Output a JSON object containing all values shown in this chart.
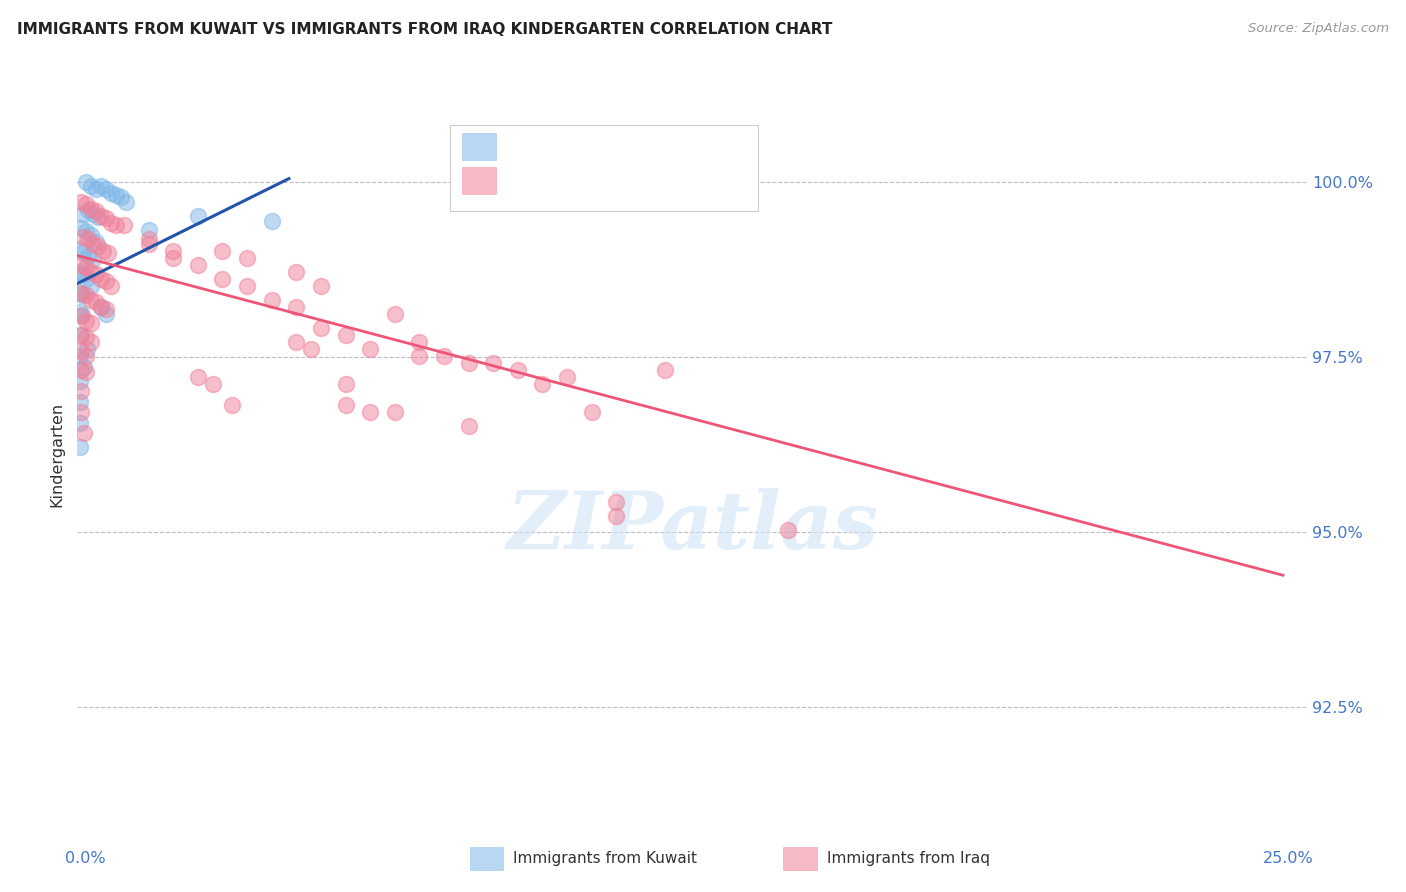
{
  "title": "IMMIGRANTS FROM KUWAIT VS IMMIGRANTS FROM IRAQ KINDERGARTEN CORRELATION CHART",
  "source": "Source: ZipAtlas.com",
  "ylabel": "Kindergarten",
  "ylabel_ticks": [
    "92.5%",
    "95.0%",
    "97.5%",
    "100.0%"
  ],
  "ytick_vals": [
    92.5,
    95.0,
    97.5,
    100.0
  ],
  "xlim": [
    0.0,
    25.0
  ],
  "ylim": [
    91.0,
    101.2
  ],
  "color_kuwait": "#7EB6E8",
  "color_iraq": "#F08098",
  "line_kuwait": "#2255AA",
  "line_iraq": "#EE5577",
  "kuwait_points": [
    [
      0.18,
      100.0
    ],
    [
      0.28,
      99.95
    ],
    [
      0.38,
      99.9
    ],
    [
      0.48,
      99.95
    ],
    [
      0.58,
      99.9
    ],
    [
      0.68,
      99.85
    ],
    [
      0.78,
      99.82
    ],
    [
      0.88,
      99.78
    ],
    [
      0.98,
      99.72
    ],
    [
      0.12,
      99.55
    ],
    [
      0.22,
      99.6
    ],
    [
      0.32,
      99.55
    ],
    [
      0.42,
      99.5
    ],
    [
      0.08,
      99.35
    ],
    [
      0.18,
      99.3
    ],
    [
      0.28,
      99.25
    ],
    [
      0.38,
      99.15
    ],
    [
      0.05,
      99.05
    ],
    [
      0.12,
      99.0
    ],
    [
      0.22,
      98.95
    ],
    [
      0.32,
      98.9
    ],
    [
      0.05,
      98.72
    ],
    [
      0.09,
      98.68
    ],
    [
      0.18,
      98.62
    ],
    [
      0.05,
      98.42
    ],
    [
      0.09,
      98.38
    ],
    [
      0.05,
      98.15
    ],
    [
      0.09,
      98.1
    ],
    [
      0.05,
      97.82
    ],
    [
      0.05,
      97.52
    ],
    [
      0.28,
      98.52
    ],
    [
      1.45,
      99.32
    ],
    [
      3.95,
      99.45
    ],
    [
      0.05,
      97.15
    ],
    [
      0.05,
      96.85
    ],
    [
      0.05,
      96.55
    ],
    [
      0.05,
      96.22
    ],
    [
      0.14,
      97.35
    ],
    [
      0.2,
      97.62
    ],
    [
      0.48,
      98.22
    ],
    [
      0.58,
      98.12
    ],
    [
      2.45,
      99.52
    ]
  ],
  "iraq_points": [
    [
      0.08,
      99.72
    ],
    [
      0.18,
      99.68
    ],
    [
      0.28,
      99.62
    ],
    [
      0.38,
      99.58
    ],
    [
      0.48,
      99.52
    ],
    [
      0.58,
      99.48
    ],
    [
      0.68,
      99.42
    ],
    [
      0.78,
      99.38
    ],
    [
      0.12,
      99.22
    ],
    [
      0.22,
      99.18
    ],
    [
      0.32,
      99.12
    ],
    [
      0.42,
      99.08
    ],
    [
      0.52,
      99.02
    ],
    [
      0.62,
      98.98
    ],
    [
      0.08,
      98.82
    ],
    [
      0.18,
      98.78
    ],
    [
      0.28,
      98.72
    ],
    [
      0.38,
      98.68
    ],
    [
      0.48,
      98.62
    ],
    [
      0.58,
      98.58
    ],
    [
      0.68,
      98.52
    ],
    [
      0.08,
      98.42
    ],
    [
      0.18,
      98.38
    ],
    [
      0.28,
      98.32
    ],
    [
      0.38,
      98.28
    ],
    [
      0.48,
      98.22
    ],
    [
      0.58,
      98.18
    ],
    [
      0.08,
      98.08
    ],
    [
      0.18,
      98.02
    ],
    [
      0.28,
      97.98
    ],
    [
      0.08,
      97.82
    ],
    [
      0.18,
      97.78
    ],
    [
      0.28,
      97.72
    ],
    [
      0.08,
      97.58
    ],
    [
      0.18,
      97.52
    ],
    [
      0.08,
      97.32
    ],
    [
      0.18,
      97.28
    ],
    [
      0.08,
      97.02
    ],
    [
      0.08,
      96.72
    ],
    [
      0.14,
      96.42
    ],
    [
      1.45,
      99.12
    ],
    [
      1.95,
      98.92
    ],
    [
      2.45,
      98.82
    ],
    [
      2.95,
      98.62
    ],
    [
      3.45,
      98.52
    ],
    [
      3.95,
      98.32
    ],
    [
      4.45,
      98.22
    ],
    [
      4.95,
      97.92
    ],
    [
      5.45,
      97.82
    ],
    [
      5.95,
      97.62
    ],
    [
      6.95,
      97.52
    ],
    [
      7.45,
      97.52
    ],
    [
      7.95,
      97.42
    ],
    [
      8.45,
      97.42
    ],
    [
      8.95,
      97.32
    ],
    [
      9.95,
      97.22
    ],
    [
      0.95,
      99.38
    ],
    [
      1.45,
      99.18
    ],
    [
      1.95,
      99.02
    ],
    [
      2.95,
      99.02
    ],
    [
      3.45,
      98.92
    ],
    [
      4.45,
      98.72
    ],
    [
      4.95,
      98.52
    ],
    [
      6.45,
      98.12
    ],
    [
      6.95,
      97.72
    ],
    [
      9.45,
      97.12
    ],
    [
      11.95,
      97.32
    ],
    [
      14.45,
      95.02
    ],
    [
      5.45,
      97.12
    ],
    [
      5.45,
      96.82
    ],
    [
      5.95,
      96.72
    ],
    [
      6.45,
      96.72
    ],
    [
      7.95,
      96.52
    ],
    [
      10.45,
      96.72
    ],
    [
      10.95,
      95.42
    ],
    [
      10.95,
      95.22
    ],
    [
      4.45,
      97.72
    ],
    [
      4.75,
      97.62
    ],
    [
      2.45,
      97.22
    ],
    [
      2.75,
      97.12
    ],
    [
      3.15,
      96.82
    ]
  ],
  "kuwait_line_x": [
    0.0,
    4.3
  ],
  "kuwait_line_y": [
    98.55,
    100.05
  ],
  "iraq_line_x": [
    0.0,
    24.5
  ],
  "iraq_line_y": [
    98.95,
    94.38
  ]
}
